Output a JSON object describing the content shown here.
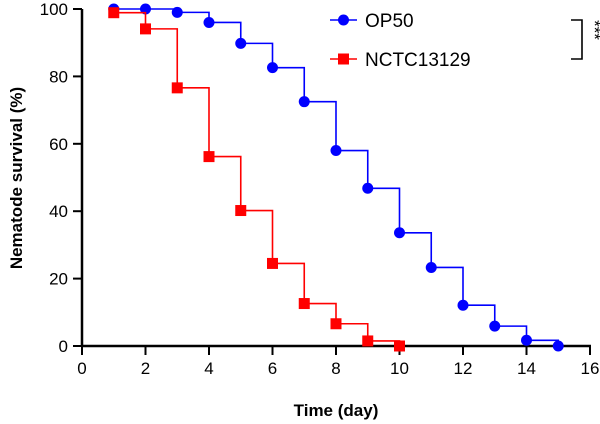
{
  "chart_data": {
    "type": "line",
    "step": true,
    "xlabel": "Time (day)",
    "ylabel": "Nematode survival (%)",
    "xlim": [
      0,
      16
    ],
    "ylim": [
      0,
      100
    ],
    "xticks": [
      0,
      2,
      4,
      6,
      8,
      10,
      12,
      14,
      16
    ],
    "yticks": [
      0,
      20,
      40,
      60,
      80,
      100
    ],
    "legend": "top-right",
    "significance": "***",
    "series": [
      {
        "name": "OP50",
        "color": "#0000ff",
        "marker": "circle",
        "x": [
          1,
          2,
          3,
          4,
          5,
          6,
          7,
          8,
          9,
          10,
          11,
          12,
          13,
          14,
          15
        ],
        "y": [
          100,
          100,
          99,
          96,
          89.8,
          82.6,
          72.5,
          58,
          46.8,
          33.6,
          23.3,
          12.1,
          5.9,
          1.7,
          0
        ]
      },
      {
        "name": "NCTC13129",
        "color": "#ff0000",
        "marker": "square",
        "x": [
          1,
          2,
          3,
          4,
          5,
          6,
          7,
          8,
          9,
          10
        ],
        "y": [
          98.9,
          94.1,
          76.6,
          56.2,
          40.2,
          24.5,
          12.6,
          6.6,
          1.5,
          0
        ]
      }
    ]
  }
}
